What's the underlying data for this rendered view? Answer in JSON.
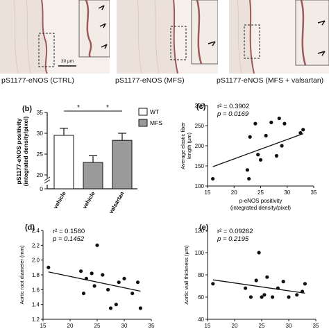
{
  "micrographs": {
    "captions": [
      "pS1177-eNOS (CTRL)",
      "pS1177-eNOS (MFS)",
      "pS1177-eNOS (MFS + valsartan)"
    ],
    "scale_bar_label": "30 μm",
    "colors": {
      "tissue": "#e9ddd6",
      "stain": "#a05a5a",
      "background": "#f3ece8"
    }
  },
  "panel_b": {
    "letter": "(b)",
    "legend": [
      "WT",
      "MFS"
    ],
    "significance": [
      "*",
      "*"
    ],
    "colors": {
      "wt": "#ffffff",
      "mfs": "#9a9a9a"
    }
  },
  "panel_c": {
    "letter": "(c)",
    "stats": [
      "r² = 0.3902",
      "p = 0.0169"
    ]
  },
  "panel_d": {
    "letter": "(d)",
    "stats": [
      "r² = 0.1560",
      "p = 0.1452"
    ]
  },
  "panel_e": {
    "letter": "(e)",
    "stats": [
      "r² = 0.09262",
      "p = 0.2195"
    ]
  },
  "chart_data": [
    {
      "id": "b",
      "type": "bar",
      "categories": [
        "vehicle",
        "vehicle",
        "valsartan"
      ],
      "series": [
        {
          "name": "WT",
          "values": [
            29.5,
            null,
            null
          ]
        },
        {
          "name": "MFS",
          "values": [
            null,
            23.0,
            28.3
          ]
        }
      ],
      "errors": [
        1.7,
        1.6,
        1.7
      ],
      "ylabel": "pS1177-eNOS positivity\n(integrated density/pixel)",
      "ylim": [
        0,
        35
      ],
      "yticks": [
        "0",
        "20",
        "25",
        "30",
        "35"
      ],
      "legend_position": "top-right"
    },
    {
      "id": "c",
      "type": "scatter",
      "x": [
        16,
        22.5,
        22.8,
        23,
        24,
        24.5,
        25,
        26,
        27,
        28,
        28.5,
        29,
        29.5,
        32.5,
        33
      ],
      "y": [
        118,
        140,
        118,
        222,
        255,
        178,
        165,
        225,
        258,
        175,
        268,
        200,
        255,
        232,
        240
      ],
      "fit": {
        "x": [
          16,
          33
        ],
        "y": [
          148,
          230
        ]
      },
      "xlabel": "p-eNOS positivity\n(integrated density/pixel)",
      "ylabel": "Average elastic fiber\nlength (μm)",
      "xlim": [
        15,
        35
      ],
      "ylim": [
        100,
        300
      ],
      "xticks": [
        "15",
        "20",
        "25",
        "30",
        "35"
      ],
      "yticks": [
        "100",
        "150",
        "200",
        "250",
        "300"
      ]
    },
    {
      "id": "d",
      "type": "scatter",
      "x": [
        16,
        22,
        22.5,
        23,
        24,
        24.5,
        25,
        26,
        27,
        27.5,
        28.5,
        29,
        30,
        31.5,
        32.5,
        33
      ],
      "y": [
        1.9,
        1.85,
        1.55,
        1.75,
        1.82,
        1.65,
        2.2,
        1.8,
        1.6,
        1.35,
        1.4,
        1.7,
        1.75,
        1.55,
        1.7,
        1.35
      ],
      "fit": {
        "x": [
          16,
          33
        ],
        "y": [
          1.84,
          1.58
        ]
      },
      "ylabel": "Aortic root diameter (mm)",
      "xlim": [
        15,
        35
      ],
      "ylim": [
        1.2,
        2.4
      ],
      "xticks": [
        "15",
        "20",
        "25",
        "30",
        "35"
      ],
      "yticks": [
        "1.2",
        "1.4",
        "1.6",
        "1.8",
        "2.0",
        "2.2",
        "2.4"
      ]
    },
    {
      "id": "e",
      "type": "scatter",
      "x": [
        16,
        22,
        23,
        24,
        24.5,
        25,
        25.5,
        26,
        27,
        28,
        29,
        30,
        31.5,
        32.5,
        33
      ],
      "y": [
        72,
        68,
        60,
        75,
        100,
        60,
        62,
        78,
        60,
        68,
        74,
        60,
        62,
        65,
        72
      ],
      "fit": {
        "x": [
          16,
          33
        ],
        "y": [
          75.5,
          63.5
        ]
      },
      "ylabel": "Aortic wall thickness (μm)",
      "xlim": [
        15,
        35
      ],
      "ylim": [
        40,
        120
      ],
      "xticks": [
        "15",
        "20",
        "25",
        "30",
        "35"
      ],
      "yticks": [
        "40",
        "60",
        "80",
        "100",
        "120"
      ]
    }
  ]
}
